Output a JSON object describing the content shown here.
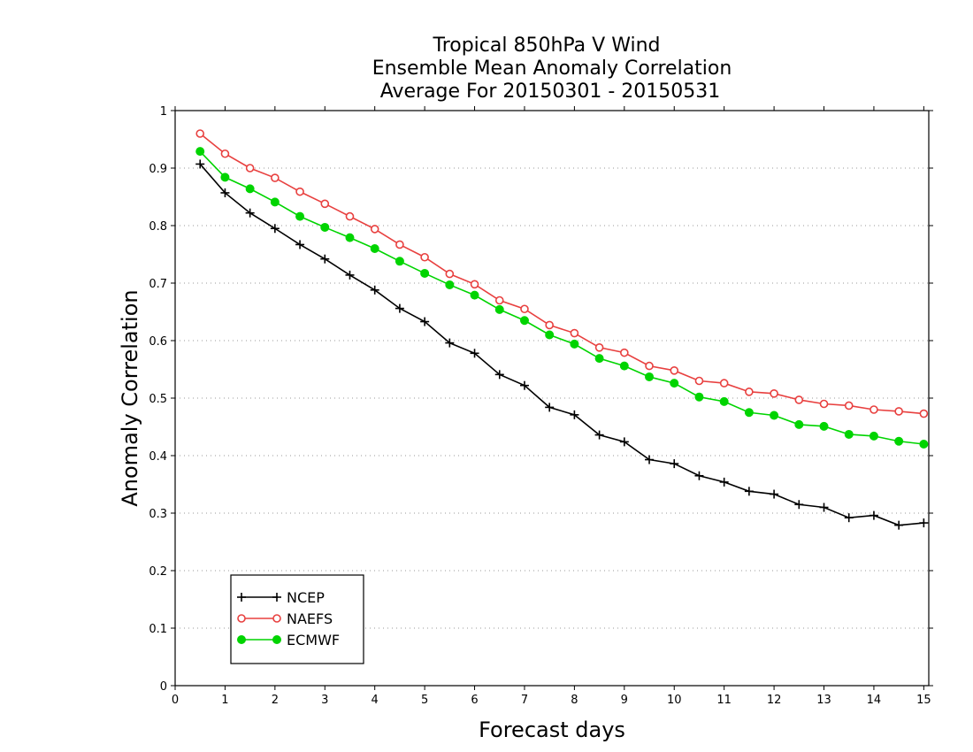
{
  "chart_data": {
    "type": "line",
    "title_lines": [
      "Tropical 850hPa V Wind",
      "Ensemble Mean Anomaly Correlation",
      "Average For 20150301 - 20150531"
    ],
    "xlabel": "Forecast days",
    "ylabel": "Anomaly Correlation",
    "xlim": [
      0,
      15.1
    ],
    "ylim": [
      0,
      1
    ],
    "xticks": [
      0,
      1,
      2,
      3,
      4,
      5,
      6,
      7,
      8,
      9,
      10,
      11,
      12,
      13,
      14,
      15
    ],
    "xtick_labels": [
      "0",
      "1",
      "2",
      "3",
      "4",
      "5",
      "6",
      "7",
      "8",
      "9",
      "10",
      "11",
      "12",
      "13",
      "14",
      "15"
    ],
    "yticks": [
      0,
      0.1,
      0.2,
      0.3,
      0.4,
      0.5,
      0.6,
      0.7,
      0.8,
      0.9,
      1
    ],
    "ytick_labels": [
      "0",
      "0.1",
      "0.2",
      "0.3",
      "0.4",
      "0.5",
      "0.6",
      "0.7",
      "0.8",
      "0.9",
      "1"
    ],
    "grid": "horizontal dotted",
    "legend_position": "bottom-left",
    "x": [
      0.5,
      1,
      1.5,
      2,
      2.5,
      3,
      3.5,
      4,
      4.5,
      5,
      5.5,
      6,
      6.5,
      7,
      7.5,
      8,
      8.5,
      9,
      9.5,
      10,
      10.5,
      11,
      11.5,
      12,
      12.5,
      13,
      13.5,
      14,
      14.5,
      15
    ],
    "series": [
      {
        "name": "NCEP",
        "color": "#000000",
        "marker": "plus",
        "values": [
          0.907,
          0.857,
          0.822,
          0.795,
          0.767,
          0.742,
          0.714,
          0.688,
          0.656,
          0.633,
          0.596,
          0.578,
          0.541,
          0.522,
          0.484,
          0.471,
          0.436,
          0.424,
          0.393,
          0.386,
          0.365,
          0.354,
          0.338,
          0.333,
          0.315,
          0.31,
          0.292,
          0.296,
          0.279,
          0.283
        ]
      },
      {
        "name": "NAEFS",
        "color": "#e8403f",
        "marker": "open-circle",
        "values": [
          0.96,
          0.925,
          0.9,
          0.883,
          0.859,
          0.838,
          0.816,
          0.794,
          0.767,
          0.745,
          0.716,
          0.698,
          0.67,
          0.655,
          0.627,
          0.613,
          0.588,
          0.579,
          0.556,
          0.548,
          0.53,
          0.526,
          0.511,
          0.508,
          0.497,
          0.49,
          0.487,
          0.48,
          0.477,
          0.473
        ]
      },
      {
        "name": "ECMWF",
        "color": "#00d400",
        "marker": "filled-circle",
        "values": [
          0.929,
          0.884,
          0.864,
          0.841,
          0.816,
          0.797,
          0.779,
          0.76,
          0.738,
          0.717,
          0.697,
          0.679,
          0.654,
          0.635,
          0.61,
          0.594,
          0.569,
          0.556,
          0.537,
          0.526,
          0.502,
          0.494,
          0.475,
          0.47,
          0.454,
          0.451,
          0.437,
          0.434,
          0.425,
          0.42
        ]
      }
    ]
  }
}
